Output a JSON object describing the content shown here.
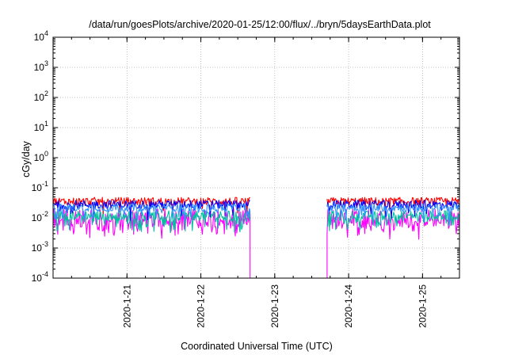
{
  "chart_data": {
    "type": "line",
    "title": "/data/run/goesPlots/archive/2020-01-25/12:00/flux/../bryn/5daysEarthData.plot",
    "xlabel": "Coordinated Universal Time (UTC)",
    "ylabel": "cGy/day",
    "yscale": "log",
    "ylim": [
      0.0001,
      10000
    ],
    "ytick_exponents": [
      "4",
      "3",
      "2",
      "1",
      "0",
      "-1",
      "-2",
      "-3",
      "-4"
    ],
    "xlim": [
      "2020-01-20 00:00",
      "2020-01-25 12:00"
    ],
    "xtick_labels": [
      "2020-1-21",
      "2020-1-22",
      "2020-1-23",
      "2020-1-24",
      "2020-1-25"
    ],
    "grid": true,
    "data_gap": [
      "2020-01-22 16:00",
      "2020-01-23 17:00"
    ],
    "series": [
      {
        "color": "#ff0000",
        "typical_value": 0.035,
        "noise": 0.14,
        "dip": 0.05,
        "x": [
          "2020-01-20 00:00",
          "2020-01-22 16:00",
          "2020-01-23 17:00",
          "2020-01-25 12:00"
        ],
        "values": [
          0.035,
          0.035,
          0.035,
          0.035
        ]
      },
      {
        "color": "#0000ff",
        "typical_value": 0.028,
        "noise": 0.14,
        "dip": 0.08,
        "x": [
          "2020-01-20 00:00",
          "2020-01-22 16:00",
          "2020-01-23 17:00",
          "2020-01-25 12:00"
        ],
        "values": [
          0.028,
          0.028,
          0.028,
          0.028
        ]
      },
      {
        "color": "#00c0a0",
        "typical_value": 0.012,
        "noise": 0.16,
        "dip": 0.22,
        "x": [
          "2020-01-20 00:00",
          "2020-01-22 16:00",
          "2020-01-23 17:00",
          "2020-01-25 12:00"
        ],
        "values": [
          0.012,
          0.012,
          0.012,
          0.012
        ]
      },
      {
        "color": "#ff00ff",
        "typical_value": 0.01,
        "noise": 0.3,
        "dip": 0.42,
        "x": [
          "2020-01-20 00:00",
          "2020-01-22 16:00",
          "2020-01-23 17:00",
          "2020-01-25 12:00"
        ],
        "values": [
          0.01,
          0.01,
          0.01,
          0.01
        ]
      },
      {
        "color": "#3090ff",
        "typical_value": 0.022,
        "noise": 0.13,
        "dip": 0.12,
        "x": [
          "2020-01-20 00:00",
          "2020-01-22 16:00",
          "2020-01-23 17:00",
          "2020-01-25 12:00"
        ],
        "values": [
          0.022,
          0.022,
          0.022,
          0.022
        ]
      }
    ]
  }
}
